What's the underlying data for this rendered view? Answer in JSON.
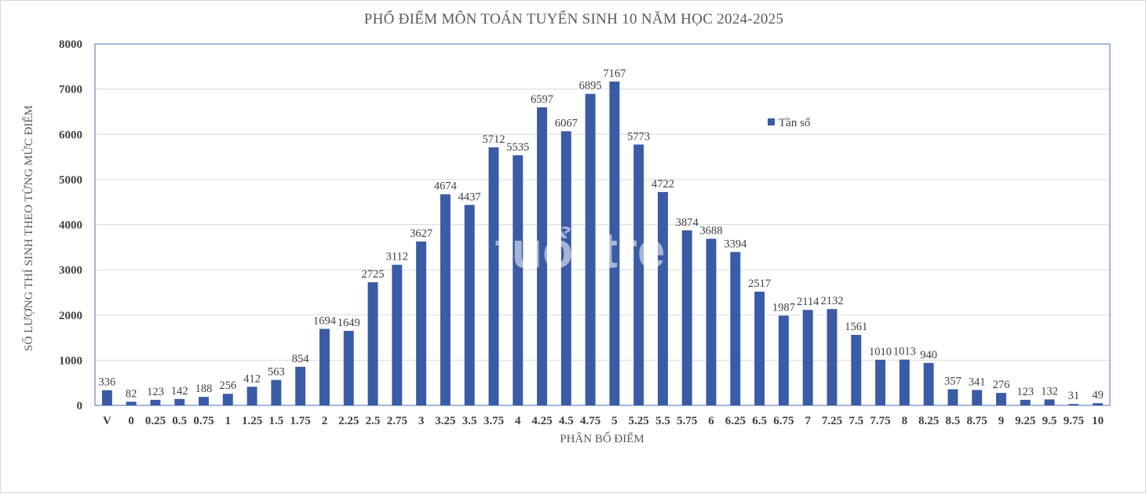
{
  "chart_data": {
    "type": "bar",
    "title": "PHỔ ĐIỂM MÔN TOÁN TUYỂN SINH 10 NĂM HỌC 2024-2025",
    "xlabel": "PHÂN BỔ ĐIỂM",
    "ylabel": "SỐ LƯỢNG THÍ SINH THEO TỪNG MỨC ĐIỂM",
    "ylim": [
      0,
      8000
    ],
    "yticks": [
      0,
      1000,
      2000,
      3000,
      4000,
      5000,
      6000,
      7000,
      8000
    ],
    "grid": true,
    "legend_position": "top-right",
    "bar_color": "#3a5ba5",
    "categories": [
      "V",
      "0",
      "0.25",
      "0.5",
      "0.75",
      "1",
      "1.25",
      "1.5",
      "1.75",
      "2",
      "2.25",
      "2.5",
      "2.75",
      "3",
      "3.25",
      "3.5",
      "3.75",
      "4",
      "4.25",
      "4.5",
      "4.75",
      "5",
      "5.25",
      "5.5",
      "5.75",
      "6",
      "6.25",
      "6.5",
      "6.75",
      "7",
      "7.25",
      "7.5",
      "7.75",
      "8",
      "8.25",
      "8.5",
      "8.75",
      "9",
      "9.25",
      "9.5",
      "9.75",
      "10"
    ],
    "series": [
      {
        "name": "Tần số",
        "values": [
          336,
          82,
          123,
          142,
          188,
          256,
          412,
          563,
          854,
          1694,
          1649,
          2725,
          3112,
          3627,
          4674,
          4437,
          5712,
          5535,
          6597,
          6067,
          6895,
          7167,
          5773,
          4722,
          3874,
          3688,
          3394,
          2517,
          1987,
          2114,
          2132,
          1561,
          1010,
          1013,
          940,
          357,
          341,
          276,
          123,
          132,
          31,
          49
        ]
      }
    ]
  }
}
